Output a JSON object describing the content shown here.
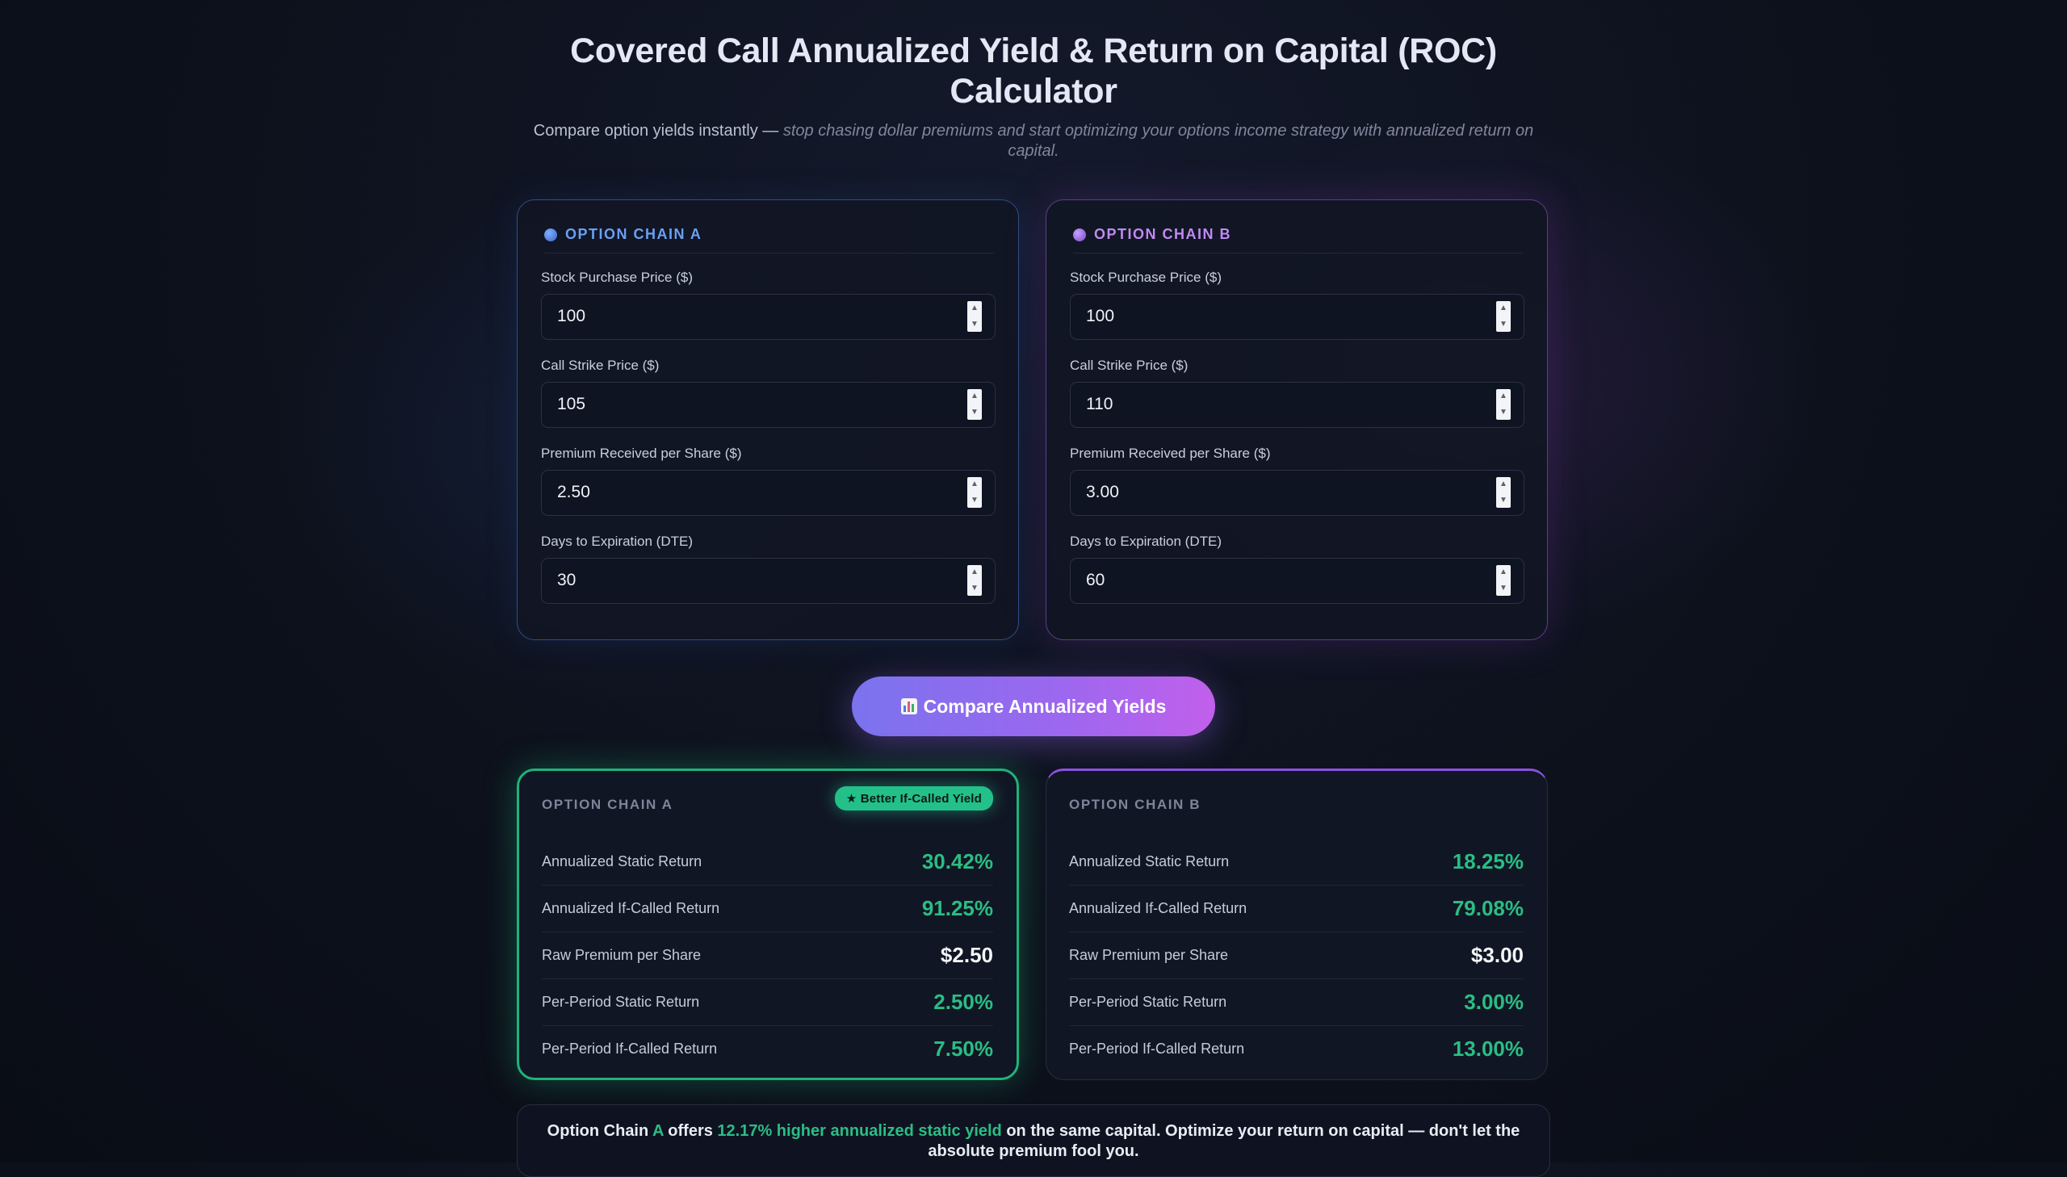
{
  "header": {
    "title": "Covered Call Annualized Yield & Return on Capital (ROC) Calculator",
    "subtitle_lead": "Compare option yields instantly —",
    "subtitle_italic": "stop chasing dollar premiums and start optimizing your options income strategy with annualized return on capital."
  },
  "chain_a": {
    "heading": "OPTION CHAIN A",
    "fields": [
      {
        "label": "Stock Purchase Price ($)",
        "value": "100"
      },
      {
        "label": "Call Strike Price ($)",
        "value": "105"
      },
      {
        "label": "Premium Received per Share ($)",
        "value": "2.50"
      },
      {
        "label": "Days to Expiration (DTE)",
        "value": "30"
      }
    ]
  },
  "chain_b": {
    "heading": "OPTION CHAIN B",
    "fields": [
      {
        "label": "Stock Purchase Price ($)",
        "value": "100"
      },
      {
        "label": "Call Strike Price ($)",
        "value": "110"
      },
      {
        "label": "Premium Received per Share ($)",
        "value": "3.00"
      },
      {
        "label": "Days to Expiration (DTE)",
        "value": "60"
      }
    ]
  },
  "compare_button": {
    "icon": "bar-chart-icon",
    "label": "Compare Annualized Yields"
  },
  "result_a": {
    "heading": "OPTION CHAIN A",
    "badge": "★ Better If-Called Yield",
    "rows": [
      {
        "label": "Annualized Static Return",
        "value": "30.42%"
      },
      {
        "label": "Annualized If-Called Return",
        "value": "91.25%"
      },
      {
        "label": "Raw Premium per Share",
        "value": "$2.50"
      },
      {
        "label": "Per-Period Static Return",
        "value": "2.50%"
      },
      {
        "label": "Per-Period If-Called Return",
        "value": "7.50%"
      }
    ]
  },
  "result_b": {
    "heading": "OPTION CHAIN B",
    "rows": [
      {
        "label": "Annualized Static Return",
        "value": "18.25%"
      },
      {
        "label": "Annualized If-Called Return",
        "value": "79.08%"
      },
      {
        "label": "Raw Premium per Share",
        "value": "$3.00"
      },
      {
        "label": "Per-Period Static Return",
        "value": "3.00%"
      },
      {
        "label": "Per-Period If-Called Return",
        "value": "13.00%"
      }
    ]
  },
  "verdict": {
    "part1": "Option Chain ",
    "chain": "A",
    "part2": " offers ",
    "highlight": "12.17% higher annualized static yield",
    "part3": " on the same capital. Optimize your ",
    "bold": "return on capital",
    "part4": " — don't let the absolute premium fool you."
  },
  "colors": {
    "accent_green": "#2bbd84",
    "chain_a_accent": "#6aa0f2",
    "chain_b_accent": "#c08af2",
    "button_gradient_start": "#7b73ee",
    "button_gradient_end": "#c160ec"
  }
}
